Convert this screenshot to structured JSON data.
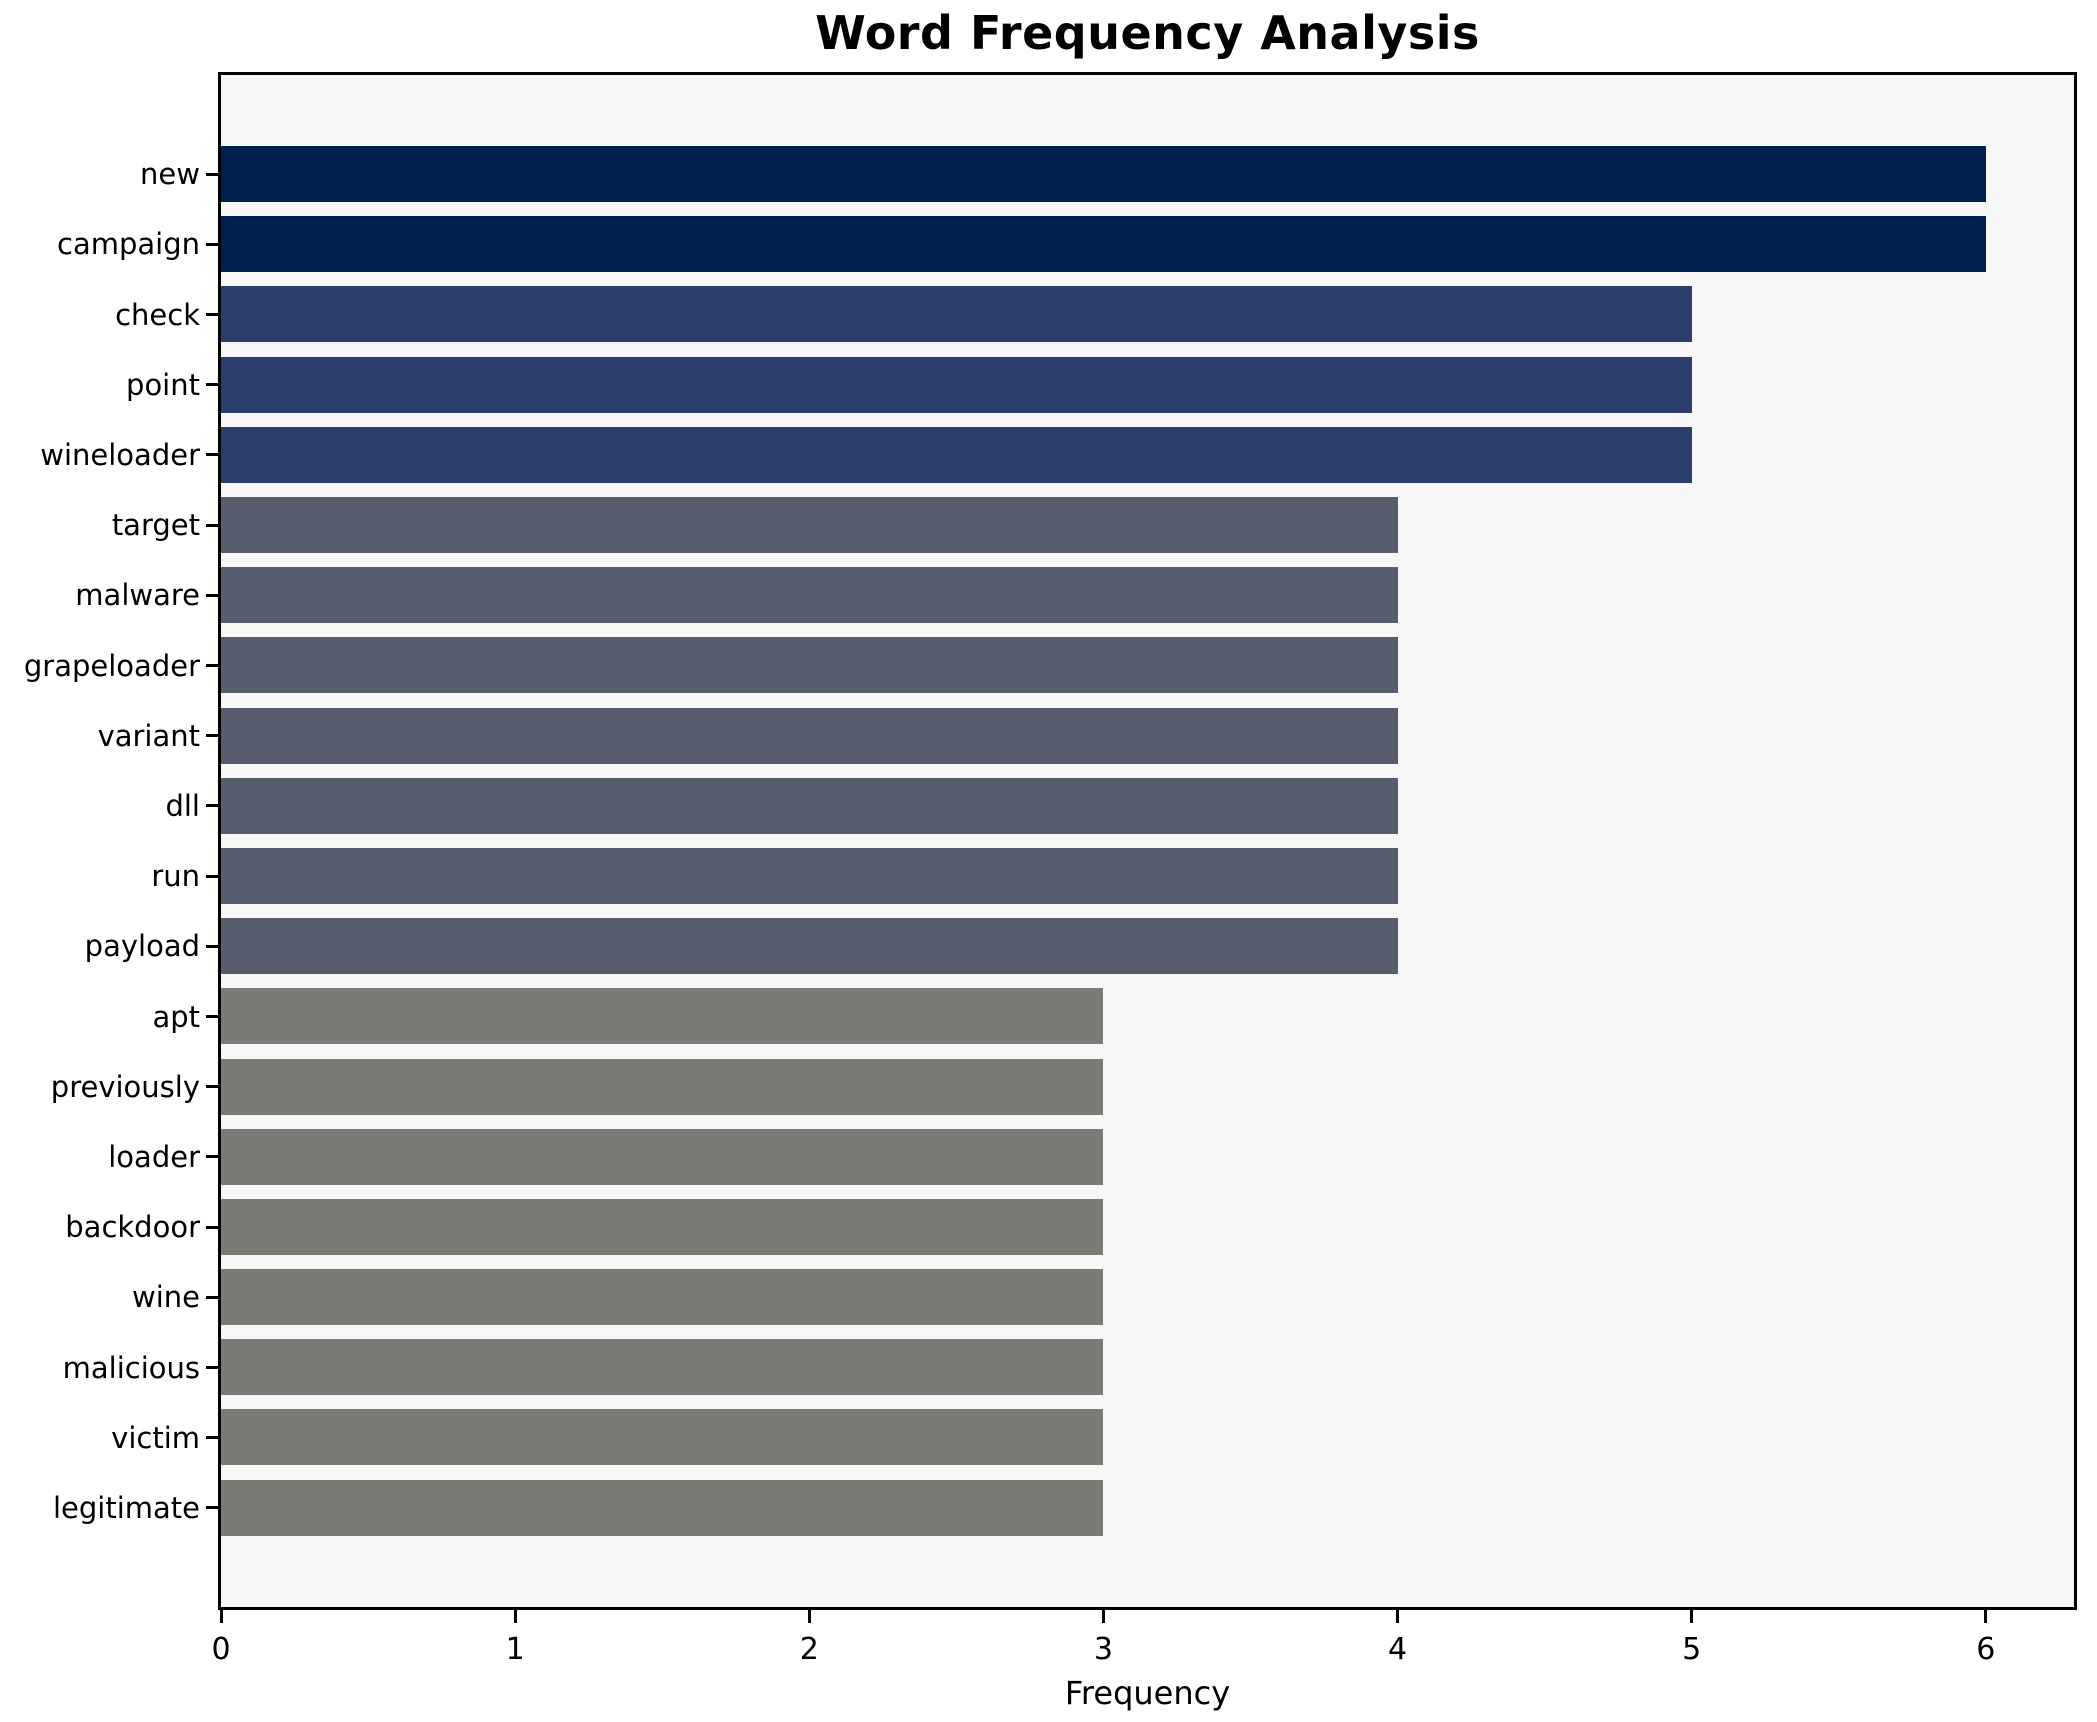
{
  "chart_data": {
    "type": "bar",
    "orientation": "horizontal",
    "title": "Word Frequency Analysis",
    "xlabel": "Frequency",
    "ylabel": "",
    "categories": [
      "new",
      "campaign",
      "check",
      "point",
      "wineloader",
      "target",
      "malware",
      "grapeloader",
      "variant",
      "dll",
      "run",
      "payload",
      "apt",
      "previously",
      "loader",
      "backdoor",
      "wine",
      "malicious",
      "victim",
      "legitimate"
    ],
    "values": [
      6,
      6,
      5,
      5,
      5,
      4,
      4,
      4,
      4,
      4,
      4,
      4,
      3,
      3,
      3,
      3,
      3,
      3,
      3,
      3
    ],
    "x_ticks": [
      "0",
      "1",
      "2",
      "3",
      "4",
      "5",
      "6"
    ],
    "xlim": [
      0,
      6.3
    ],
    "grid": false,
    "legend_position": "none",
    "colors": {
      "value_to_bar_color": {
        "6": "#00224E",
        "5": "#2B3E6B",
        "4": "#575D6D",
        "3": "#7B7A75"
      },
      "plot_background": "#F7F7F7",
      "figure_background": "#FFFFFF",
      "axis_spine": "#000000",
      "text": "#000000"
    }
  }
}
